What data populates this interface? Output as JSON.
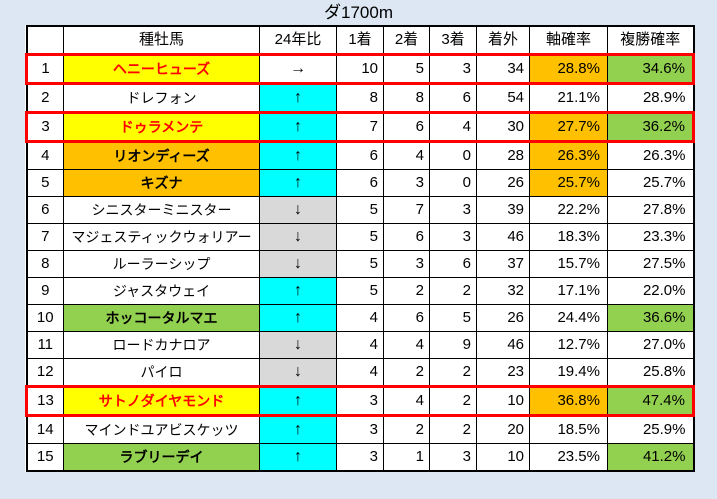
{
  "title": "ダ1700m",
  "colors": {
    "white": "#ffffff",
    "yellow": "#ffff00",
    "orange": "#ffc000",
    "green": "#92d050",
    "cyan": "#00ffff",
    "gray": "#d9d9d9",
    "red": "#ff0000",
    "black": "#000000",
    "page_bg": "#dce7f3",
    "border": "#000000",
    "highlight_border": "#ff0000"
  },
  "chart_data": {
    "type": "table",
    "title": "ダ1700m",
    "columns": [
      "",
      "種牡馬",
      "24年比",
      "1着",
      "2着",
      "3着",
      "着外",
      "軸確率",
      "複勝確率"
    ],
    "rows": [
      {
        "rank": "1",
        "name": "ヘニーヒューズ",
        "name_bg": "yellow",
        "name_color": "red",
        "name_bold": true,
        "trend": "→",
        "trend_bg": "white",
        "win1": "10",
        "win2": "5",
        "win3": "3",
        "out": "34",
        "axis_prob": "28.8%",
        "axis_bg": "orange",
        "place_prob": "34.6%",
        "place_bg": "green",
        "highlight": true
      },
      {
        "rank": "2",
        "name": "ドレフォン",
        "name_bg": "white",
        "name_color": "black",
        "name_bold": false,
        "trend": "↑",
        "trend_bg": "cyan",
        "win1": "8",
        "win2": "8",
        "win3": "6",
        "out": "54",
        "axis_prob": "21.1%",
        "axis_bg": "white",
        "place_prob": "28.9%",
        "place_bg": "white",
        "highlight": false
      },
      {
        "rank": "3",
        "name": "ドゥラメンテ",
        "name_bg": "yellow",
        "name_color": "red",
        "name_bold": true,
        "trend": "↑",
        "trend_bg": "cyan",
        "win1": "7",
        "win2": "6",
        "win3": "4",
        "out": "30",
        "axis_prob": "27.7%",
        "axis_bg": "orange",
        "place_prob": "36.2%",
        "place_bg": "green",
        "highlight": true
      },
      {
        "rank": "4",
        "name": "リオンディーズ",
        "name_bg": "orange",
        "name_color": "black",
        "name_bold": true,
        "trend": "↑",
        "trend_bg": "cyan",
        "win1": "6",
        "win2": "4",
        "win3": "0",
        "out": "28",
        "axis_prob": "26.3%",
        "axis_bg": "orange",
        "place_prob": "26.3%",
        "place_bg": "white",
        "highlight": false
      },
      {
        "rank": "5",
        "name": "キズナ",
        "name_bg": "orange",
        "name_color": "black",
        "name_bold": true,
        "trend": "↑",
        "trend_bg": "cyan",
        "win1": "6",
        "win2": "3",
        "win3": "0",
        "out": "26",
        "axis_prob": "25.7%",
        "axis_bg": "orange",
        "place_prob": "25.7%",
        "place_bg": "white",
        "highlight": false
      },
      {
        "rank": "6",
        "name": "シニスターミニスター",
        "name_bg": "white",
        "name_color": "black",
        "name_bold": false,
        "trend": "↓",
        "trend_bg": "gray",
        "win1": "5",
        "win2": "7",
        "win3": "3",
        "out": "39",
        "axis_prob": "22.2%",
        "axis_bg": "white",
        "place_prob": "27.8%",
        "place_bg": "white",
        "highlight": false
      },
      {
        "rank": "7",
        "name": "マジェスティックウォリアー",
        "name_bg": "white",
        "name_color": "black",
        "name_bold": false,
        "trend": "↓",
        "trend_bg": "gray",
        "win1": "5",
        "win2": "6",
        "win3": "3",
        "out": "46",
        "axis_prob": "18.3%",
        "axis_bg": "white",
        "place_prob": "23.3%",
        "place_bg": "white",
        "highlight": false
      },
      {
        "rank": "8",
        "name": "ルーラーシップ",
        "name_bg": "white",
        "name_color": "black",
        "name_bold": false,
        "trend": "↓",
        "trend_bg": "gray",
        "win1": "5",
        "win2": "3",
        "win3": "6",
        "out": "37",
        "axis_prob": "15.7%",
        "axis_bg": "white",
        "place_prob": "27.5%",
        "place_bg": "white",
        "highlight": false
      },
      {
        "rank": "9",
        "name": "ジャスタウェイ",
        "name_bg": "white",
        "name_color": "black",
        "name_bold": false,
        "trend": "↑",
        "trend_bg": "cyan",
        "win1": "5",
        "win2": "2",
        "win3": "2",
        "out": "32",
        "axis_prob": "17.1%",
        "axis_bg": "white",
        "place_prob": "22.0%",
        "place_bg": "white",
        "highlight": false
      },
      {
        "rank": "10",
        "name": "ホッコータルマエ",
        "name_bg": "green",
        "name_color": "black",
        "name_bold": true,
        "trend": "↑",
        "trend_bg": "cyan",
        "win1": "4",
        "win2": "6",
        "win3": "5",
        "out": "26",
        "axis_prob": "24.4%",
        "axis_bg": "white",
        "place_prob": "36.6%",
        "place_bg": "green",
        "highlight": false
      },
      {
        "rank": "11",
        "name": "ロードカナロア",
        "name_bg": "white",
        "name_color": "black",
        "name_bold": false,
        "trend": "↓",
        "trend_bg": "gray",
        "win1": "4",
        "win2": "4",
        "win3": "9",
        "out": "46",
        "axis_prob": "12.7%",
        "axis_bg": "white",
        "place_prob": "27.0%",
        "place_bg": "white",
        "highlight": false
      },
      {
        "rank": "12",
        "name": "パイロ",
        "name_bg": "white",
        "name_color": "black",
        "name_bold": false,
        "trend": "↓",
        "trend_bg": "gray",
        "win1": "4",
        "win2": "2",
        "win3": "2",
        "out": "23",
        "axis_prob": "19.4%",
        "axis_bg": "white",
        "place_prob": "25.8%",
        "place_bg": "white",
        "highlight": false
      },
      {
        "rank": "13",
        "name": "サトノダイヤモンド",
        "name_bg": "yellow",
        "name_color": "red",
        "name_bold": true,
        "trend": "↑",
        "trend_bg": "cyan",
        "win1": "3",
        "win2": "4",
        "win3": "2",
        "out": "10",
        "axis_prob": "36.8%",
        "axis_bg": "orange",
        "place_prob": "47.4%",
        "place_bg": "green",
        "highlight": true
      },
      {
        "rank": "14",
        "name": "マインドユアビスケッツ",
        "name_bg": "white",
        "name_color": "black",
        "name_bold": false,
        "trend": "↑",
        "trend_bg": "cyan",
        "win1": "3",
        "win2": "2",
        "win3": "2",
        "out": "20",
        "axis_prob": "18.5%",
        "axis_bg": "white",
        "place_prob": "25.9%",
        "place_bg": "white",
        "highlight": false
      },
      {
        "rank": "15",
        "name": "ラブリーデイ",
        "name_bg": "green",
        "name_color": "black",
        "name_bold": true,
        "trend": "↑",
        "trend_bg": "cyan",
        "win1": "3",
        "win2": "1",
        "win3": "3",
        "out": "10",
        "axis_prob": "23.5%",
        "axis_bg": "white",
        "place_prob": "41.2%",
        "place_bg": "green",
        "highlight": false
      }
    ]
  }
}
